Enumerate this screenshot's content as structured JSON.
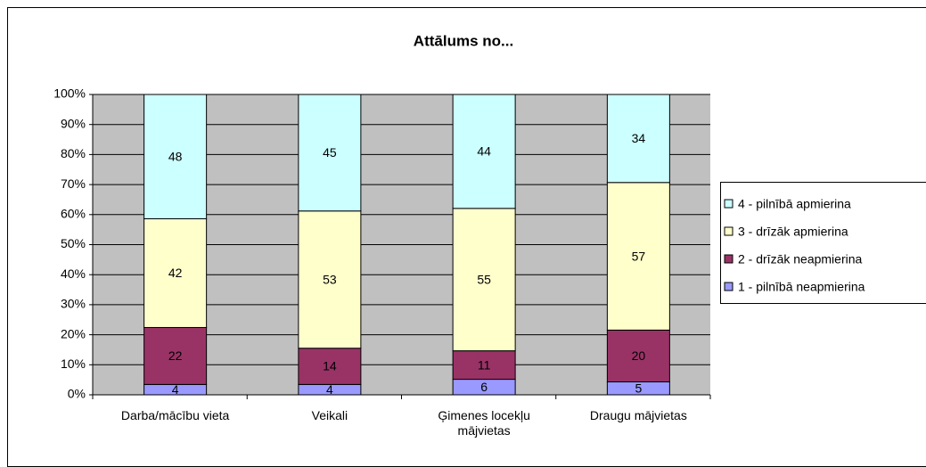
{
  "chart_data": {
    "type": "bar",
    "stacked": "percent",
    "title": "Attālums no...",
    "categories": [
      "Darba/mācību vieta",
      "Veikali",
      "Ģimenes locekļu mājvietas",
      "Draugu mājvietas"
    ],
    "series": [
      {
        "name": "1 - pilnībā neapmierina",
        "color": "#9999ff",
        "values": [
          4,
          4,
          6,
          5
        ]
      },
      {
        "name": "2 - drīzāk neapmierina",
        "color": "#993366",
        "values": [
          22,
          14,
          11,
          20
        ]
      },
      {
        "name": "3 - drīzāk apmierina",
        "color": "#ffffcc",
        "values": [
          42,
          53,
          55,
          57
        ]
      },
      {
        "name": "4 - pilnībā apmierina",
        "color": "#ccffff",
        "values": [
          48,
          45,
          44,
          34
        ]
      }
    ],
    "ylim": [
      0,
      100
    ],
    "yticks": [
      {
        "value": 0,
        "label": "0%"
      },
      {
        "value": 10,
        "label": "10%"
      },
      {
        "value": 20,
        "label": "20%"
      },
      {
        "value": 30,
        "label": "30%"
      },
      {
        "value": 40,
        "label": "40%"
      },
      {
        "value": 50,
        "label": "50%"
      },
      {
        "value": 60,
        "label": "60%"
      },
      {
        "value": 70,
        "label": "70%"
      },
      {
        "value": 80,
        "label": "80%"
      },
      {
        "value": 90,
        "label": "90%"
      },
      {
        "value": 100,
        "label": "100%"
      }
    ],
    "grid": true,
    "legend": "right"
  }
}
